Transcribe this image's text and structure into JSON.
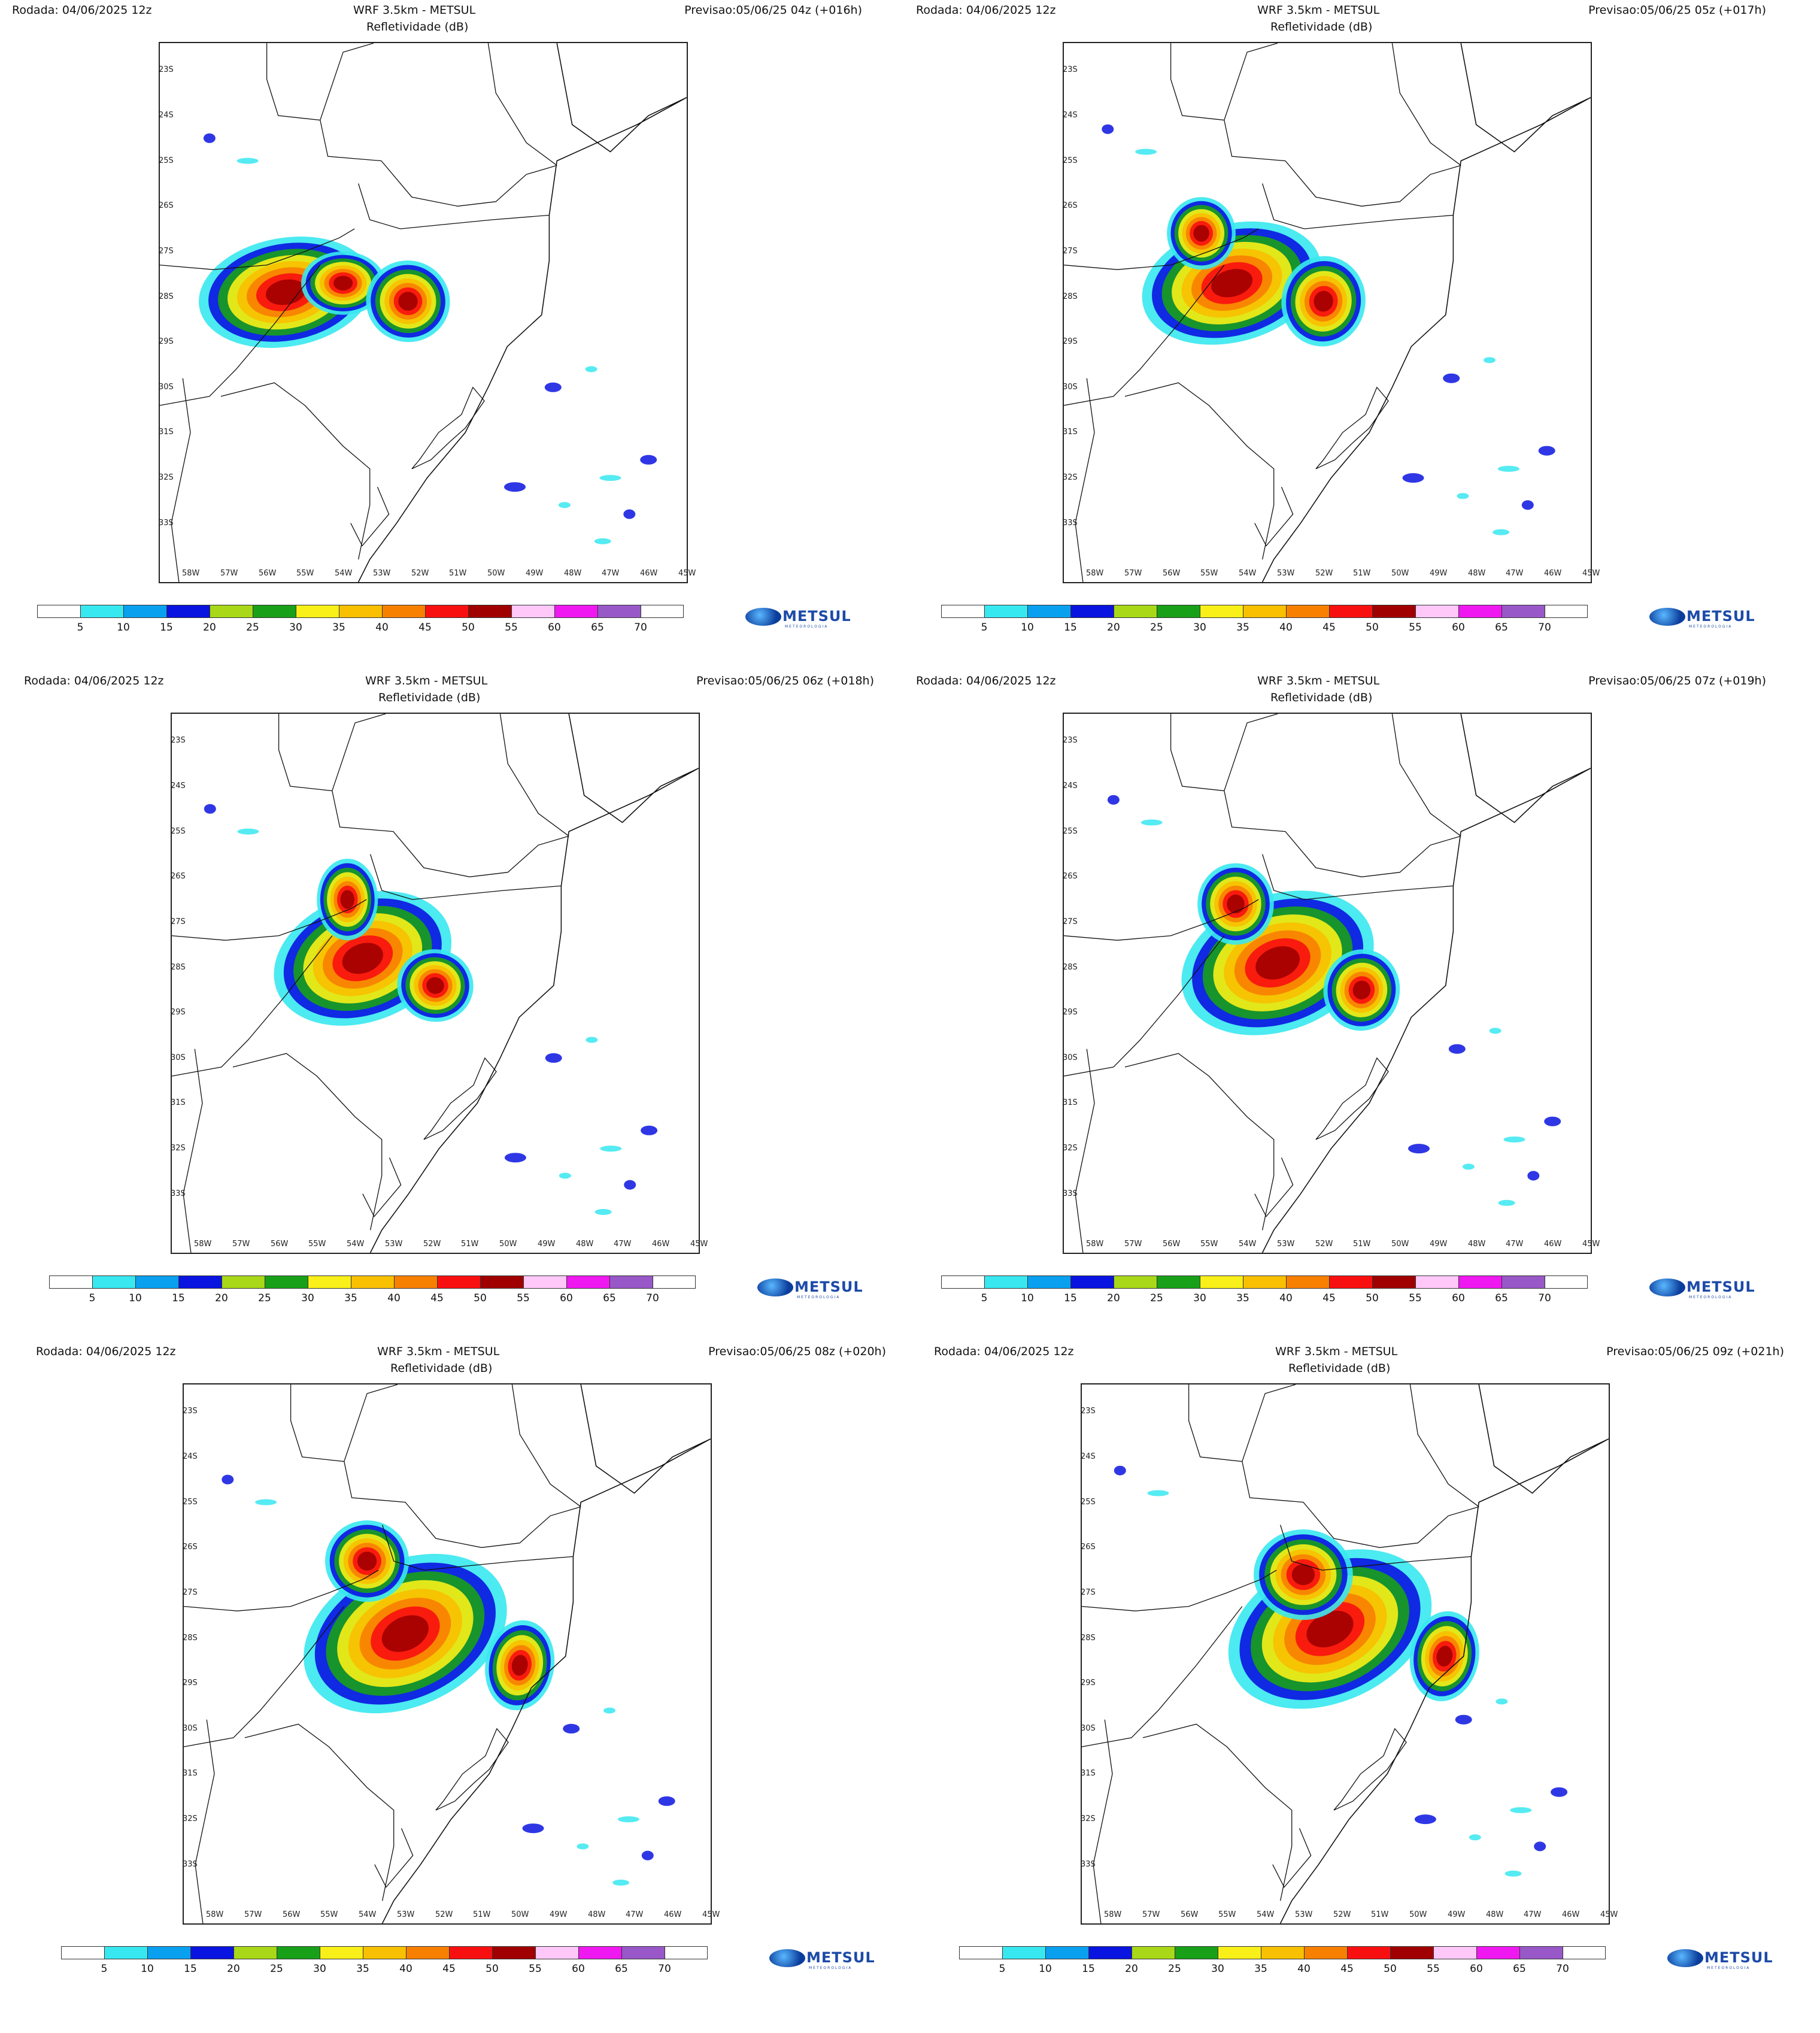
{
  "panels": [
    {
      "run": "Rodada: 04/06/2025 12z",
      "model": "WRF 3.5km - METSUL",
      "variable": "Refletividade (dB)",
      "forecast": "Previsao:05/06/25 04z (+016h)"
    },
    {
      "run": "Rodada: 04/06/2025 12z",
      "model": "WRF 3.5km - METSUL",
      "variable": "Refletividade (dB)",
      "forecast": "Previsao:05/06/25 05z (+017h)"
    },
    {
      "run": "Rodada: 04/06/2025 12z",
      "model": "WRF 3.5km - METSUL",
      "variable": "Refletividade (dB)",
      "forecast": "Previsao:05/06/25 06z (+018h)"
    },
    {
      "run": "Rodada: 04/06/2025 12z",
      "model": "WRF 3.5km - METSUL",
      "variable": "Refletividade (dB)",
      "forecast": "Previsao:05/06/25 07z (+019h)"
    },
    {
      "run": "Rodada: 04/06/2025 12z",
      "model": "WRF 3.5km - METSUL",
      "variable": "Refletividade (dB)",
      "forecast": "Previsao:05/06/25 08z (+020h)"
    },
    {
      "run": "Rodada: 04/06/2025 12z",
      "model": "WRF 3.5km - METSUL",
      "variable": "Refletividade (dB)",
      "forecast": "Previsao:05/06/25 09z (+021h)"
    }
  ],
  "lat_labels": [
    "23S",
    "24S",
    "25S",
    "26S",
    "27S",
    "28S",
    "29S",
    "30S",
    "31S",
    "32S",
    "33S"
  ],
  "lon_labels": [
    "58W",
    "57W",
    "56W",
    "55W",
    "54W",
    "53W",
    "52W",
    "51W",
    "50W",
    "49W",
    "48W",
    "47W",
    "46W",
    "45W"
  ],
  "colorbar": {
    "labels": [
      "5",
      "10",
      "15",
      "20",
      "25",
      "30",
      "35",
      "40",
      "45",
      "50",
      "55",
      "60",
      "65",
      "70"
    ],
    "colors": [
      "#ffffff",
      "#38e8f0",
      "#0aa0f0",
      "#0a14e0",
      "#a8d818",
      "#18a018",
      "#f8f018",
      "#f8c000",
      "#f88000",
      "#f81010",
      "#a00000",
      "#ffc8f8",
      "#f018f0",
      "#9858c8",
      "#ffffff"
    ]
  },
  "logo": {
    "name": "METSUL",
    "tagline": "METEOROLOGIA"
  }
}
